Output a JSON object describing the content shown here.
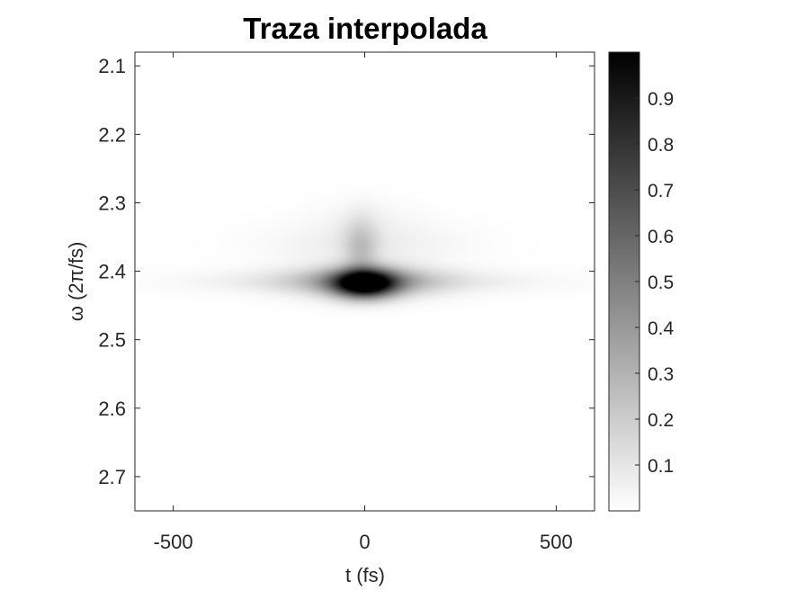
{
  "chart_data": {
    "type": "heatmap",
    "title": "Traza interpolada",
    "xlabel": "t (fs)",
    "ylabel": "ω (2π/fs)",
    "xlim": [
      -600,
      600
    ],
    "ylim": [
      2.08,
      2.75
    ],
    "y_reversed": true,
    "x_ticks": [
      -500,
      0,
      500
    ],
    "x_tick_labels": [
      "-500",
      "0",
      "500"
    ],
    "y_ticks": [
      2.1,
      2.2,
      2.3,
      2.4,
      2.5,
      2.6,
      2.7
    ],
    "y_tick_labels": [
      "2.1",
      "2.2",
      "2.3",
      "2.4",
      "2.5",
      "2.6",
      "2.7"
    ],
    "colormap": "gray-reversed",
    "colorbar": {
      "range": [
        0,
        1
      ],
      "ticks": [
        0.1,
        0.2,
        0.3,
        0.4,
        0.5,
        0.6,
        0.7,
        0.8,
        0.9
      ],
      "tick_labels": [
        "0.1",
        "0.2",
        "0.3",
        "0.4",
        "0.5",
        "0.6",
        "0.7",
        "0.8",
        "0.9"
      ]
    },
    "features": [
      {
        "t": 0,
        "w": 2.418,
        "st": 55,
        "sw": 0.014,
        "amp": 0.98
      },
      {
        "t": 0,
        "w": 2.415,
        "st": 120,
        "sw": 0.016,
        "amp": 0.35
      },
      {
        "t": 0,
        "w": 2.415,
        "st": 260,
        "sw": 0.012,
        "amp": 0.14
      },
      {
        "t": -10,
        "w": 2.365,
        "st": 32,
        "sw": 0.03,
        "amp": 0.2
      },
      {
        "t": 0,
        "w": 2.36,
        "st": 170,
        "sw": 0.022,
        "amp": 0.07
      },
      {
        "t": 0,
        "w": 2.32,
        "st": 100,
        "sw": 0.02,
        "amp": 0.03
      }
    ],
    "grid": false
  }
}
